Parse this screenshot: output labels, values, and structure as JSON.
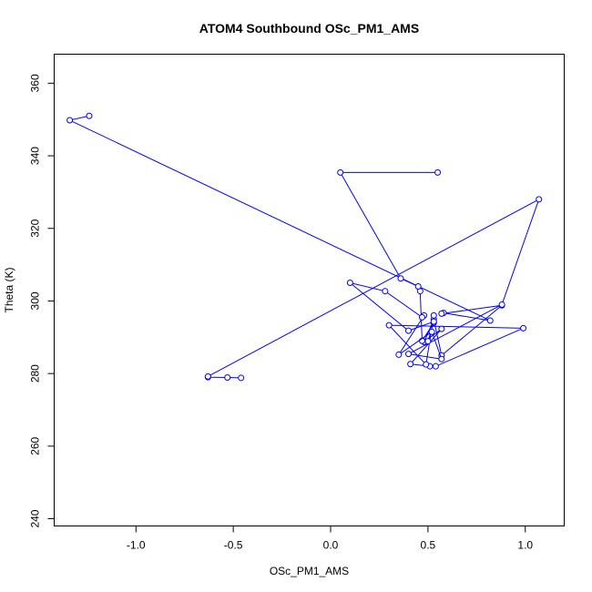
{
  "chart_data": {
    "type": "line",
    "title": "ATOM4 Southbound OSc_PM1_AMS",
    "xlabel": "OSc_PM1_AMS",
    "ylabel": "Theta (K)",
    "xlim": [
      -1.42,
      1.2
    ],
    "ylim": [
      238,
      368
    ],
    "x_ticks": [
      -1.0,
      -0.5,
      0.0,
      0.5,
      1.0
    ],
    "x_tick_labels": [
      "-1.0",
      "-0.5",
      "0.0",
      "0.5",
      "1.0"
    ],
    "y_ticks": [
      240,
      260,
      280,
      300,
      320,
      340,
      360
    ],
    "y_tick_labels": [
      "240",
      "260",
      "280",
      "300",
      "320",
      "340",
      "360"
    ],
    "series": [
      {
        "name": "OSc_PM1_AMS",
        "color": "#0000ff",
        "x": [
          -1.24,
          -1.34,
          0.82,
          0.58,
          0.57,
          0.88,
          0.57,
          0.53,
          0.48,
          0.57,
          0.41,
          0.51,
          0.54,
          0.99,
          0.3,
          0.49,
          0.53,
          0.53,
          0.47,
          0.46,
          0.45,
          0.36,
          0.05,
          0.55
        ],
        "y": [
          351.0,
          349.8,
          294.6,
          296.7,
          296.5,
          298.8,
          285.0,
          294.9,
          288.7,
          292.3,
          282.6,
          282.0,
          282.0,
          292.5,
          293.3,
          282.5,
          296.0,
          294.0,
          289.0,
          302.7,
          304.0,
          306.2,
          335.4,
          335.4
        ]
      },
      {
        "name": "OSc_PM1_AMS",
        "color": "#0000ff",
        "x": [
          -0.46,
          -0.53,
          -0.63,
          -0.63,
          1.07,
          0.88,
          0.4,
          0.57,
          0.52,
          0.35,
          0.48,
          0.47,
          0.28,
          0.1,
          0.4,
          0.53,
          0.5
        ],
        "y": [
          278.8,
          278.9,
          279.0,
          279.2,
          328.0,
          299.0,
          285.4,
          284.0,
          291.5,
          285.2,
          296.0,
          295.5,
          302.7,
          305.0,
          291.8,
          294.3,
          288.9
        ]
      }
    ]
  }
}
